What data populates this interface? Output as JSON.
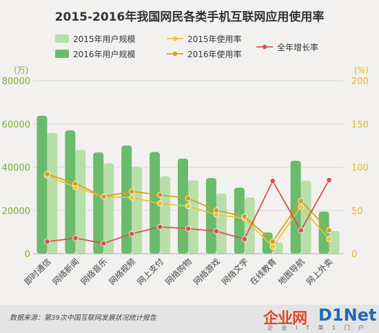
{
  "chart_data": {
    "type": "bar",
    "title": "2015-2016年我国网民各类手机互联网应用使用率",
    "left_unit": "(万)",
    "right_unit": "(%)",
    "categories": [
      "即时通信",
      "网络新闻",
      "网络音乐",
      "网络视频",
      "网上支付",
      "网络购物",
      "网络游戏",
      "网络文学",
      "在线教育",
      "地图导航",
      "网上外卖"
    ],
    "bar_series": [
      {
        "name": "2016年用户规模",
        "color": "#6bbb6c",
        "values": [
          63800,
          57000,
          46800,
          50000,
          47000,
          44000,
          35000,
          30500,
          9800,
          43000,
          19500
        ]
      },
      {
        "name": "2015年用户规模",
        "color": "#b9dfa9",
        "values": [
          55800,
          48000,
          41800,
          40300,
          35800,
          34000,
          27800,
          26000,
          5200,
          33800,
          10500
        ]
      }
    ],
    "line_series": [
      {
        "name": "2015年使用率",
        "color": "#f1c232",
        "values": [
          90,
          77,
          66,
          65,
          58,
          55,
          45,
          41,
          8,
          54,
          17
        ]
      },
      {
        "name": "2016年使用率",
        "color": "#d4a020",
        "values": [
          92,
          81,
          66,
          72,
          68,
          64,
          50,
          43,
          14,
          61,
          27
        ]
      },
      {
        "name": "全年增长率",
        "color": "#d9534f",
        "values": [
          14,
          18,
          12,
          23,
          31,
          29,
          26,
          17,
          84,
          27,
          85
        ]
      }
    ],
    "y_left": {
      "min": 0,
      "max": 80000,
      "ticks": [
        0,
        20000,
        40000,
        60000,
        80000
      ]
    },
    "y_right": {
      "min": 0,
      "max": 200,
      "ticks": [
        0,
        50,
        100,
        150,
        200
      ]
    },
    "legend": [
      {
        "label": "2015年用户规模",
        "kind": "box",
        "color": "#b9dfa9"
      },
      {
        "label": "2015年使用率",
        "kind": "line",
        "color": "#f1c232"
      },
      {
        "label": "2016年用户规模",
        "kind": "box",
        "color": "#6bbb6c"
      },
      {
        "label": "2016年使用率",
        "kind": "line",
        "color": "#d4a020"
      },
      {
        "label": "全年增长率",
        "kind": "line",
        "color": "#d9534f"
      }
    ],
    "colors": {
      "left_axis": "#7aad2b",
      "right_axis": "#e6b820",
      "grid": "#d8d8d8"
    }
  },
  "source": "数据来源：第39次中国互联网发展状况统计报告",
  "logo": {
    "main": "企业网",
    "accent": "D1Net",
    "sub": "企 业 I T 第 1 门 户"
  }
}
